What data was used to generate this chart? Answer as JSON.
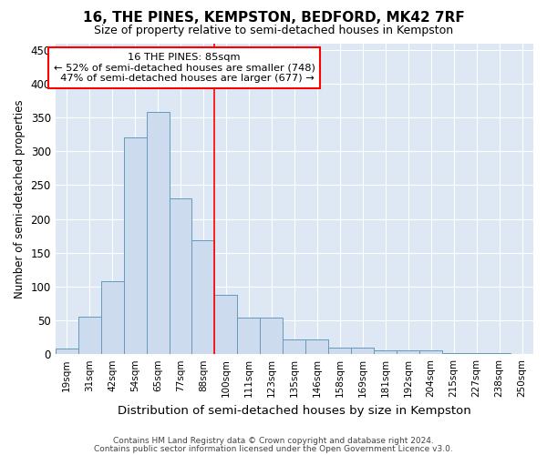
{
  "title1": "16, THE PINES, KEMPSTON, BEDFORD, MK42 7RF",
  "title2": "Size of property relative to semi-detached houses in Kempston",
  "xlabel": "Distribution of semi-detached houses by size in Kempston",
  "ylabel": "Number of semi-detached properties",
  "bar_color": "#ccdcee",
  "bar_edge_color": "#6699bb",
  "background_color": "#dde8f4",
  "grid_color": "#ffffff",
  "categories": [
    "19sqm",
    "31sqm",
    "42sqm",
    "54sqm",
    "65sqm",
    "77sqm",
    "88sqm",
    "100sqm",
    "111sqm",
    "123sqm",
    "135sqm",
    "146sqm",
    "158sqm",
    "169sqm",
    "181sqm",
    "192sqm",
    "204sqm",
    "215sqm",
    "227sqm",
    "238sqm",
    "250sqm"
  ],
  "values": [
    8,
    55,
    108,
    320,
    358,
    230,
    168,
    88,
    54,
    54,
    22,
    22,
    10,
    10,
    6,
    5,
    5,
    2,
    1,
    1,
    0
  ],
  "ylim": [
    0,
    460
  ],
  "yticks": [
    0,
    50,
    100,
    150,
    200,
    250,
    300,
    350,
    400,
    450
  ],
  "property_label": "16 THE PINES: 85sqm",
  "pct_smaller": 52,
  "n_smaller": 748,
  "pct_larger": 47,
  "n_larger": 677,
  "vline_x": 6.5,
  "footer1": "Contains HM Land Registry data © Crown copyright and database right 2024.",
  "footer2": "Contains public sector information licensed under the Open Government Licence v3.0."
}
